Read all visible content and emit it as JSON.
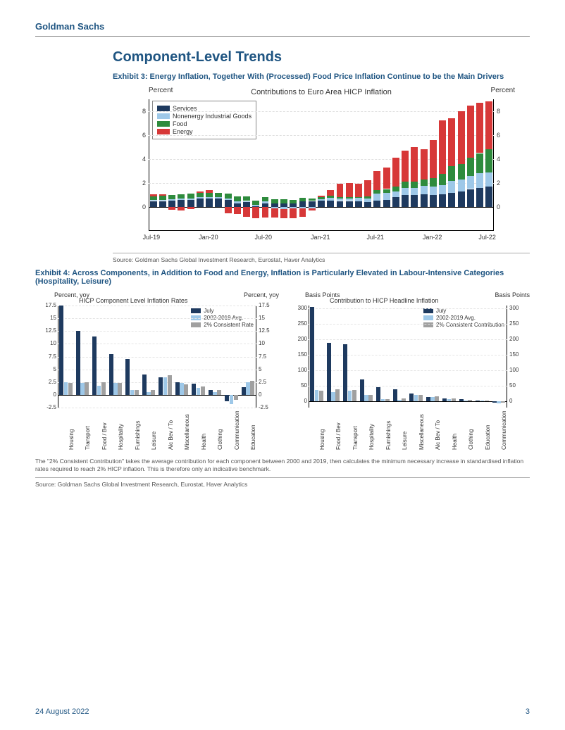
{
  "brand": "Goldman Sachs",
  "section_title": "Component-Level Trends",
  "exhibit3": {
    "title": "Exhibit 3: Energy Inflation, Together With (Processed) Food Price Inflation Continue to be the Main Drivers",
    "chart": {
      "type": "stacked_bar",
      "chart_title": "Contributions to Euro Area HICP Inflation",
      "y_label_left": "Percent",
      "y_label_right": "Percent",
      "ylim": [
        -2,
        9
      ],
      "ytick_step": 2,
      "legend": [
        {
          "label": "Services",
          "color": "#1e3a5f"
        },
        {
          "label": "Nonenergy Industrial Goods",
          "color": "#9ec8e8"
        },
        {
          "label": "Food",
          "color": "#2e8b3d"
        },
        {
          "label": "Energy",
          "color": "#d73838"
        }
      ],
      "x_labels": [
        "Jul-19",
        "Jan-20",
        "Jul-20",
        "Jan-21",
        "Jul-21",
        "Jan-22",
        "Jul-22"
      ],
      "bars": [
        {
          "services": 0.5,
          "goods": 0.1,
          "food": 0.3,
          "energy": 0.15
        },
        {
          "services": 0.5,
          "goods": 0.1,
          "food": 0.35,
          "energy": 0.1
        },
        {
          "services": 0.55,
          "goods": 0.1,
          "food": 0.35,
          "energy": -0.25
        },
        {
          "services": 0.6,
          "goods": 0.1,
          "food": 0.35,
          "energy": -0.3
        },
        {
          "services": 0.6,
          "goods": 0.1,
          "food": 0.4,
          "energy": -0.2
        },
        {
          "services": 0.7,
          "goods": 0.1,
          "food": 0.4,
          "energy": 0.1
        },
        {
          "services": 0.7,
          "goods": 0.1,
          "food": 0.4,
          "energy": 0.2
        },
        {
          "services": 0.7,
          "goods": 0.1,
          "food": 0.4,
          "energy": 0.0
        },
        {
          "services": 0.6,
          "goods": 0.1,
          "food": 0.4,
          "energy": -0.55
        },
        {
          "services": 0.3,
          "goods": 0.15,
          "food": 0.45,
          "energy": -0.6
        },
        {
          "services": 0.4,
          "goods": 0.1,
          "food": 0.4,
          "energy": -0.85
        },
        {
          "services": 0.05,
          "goods": 0.1,
          "food": 0.4,
          "energy": -0.95
        },
        {
          "services": 0.3,
          "goods": 0.15,
          "food": 0.4,
          "energy": -0.9
        },
        {
          "services": 0.3,
          "goods": -0.1,
          "food": 0.35,
          "energy": -0.8
        },
        {
          "services": 0.3,
          "goods": -0.15,
          "food": 0.35,
          "energy": -0.8
        },
        {
          "services": 0.3,
          "goods": -0.1,
          "food": 0.3,
          "energy": -0.85
        },
        {
          "services": 0.5,
          "goods": -0.1,
          "food": 0.25,
          "energy": -0.7
        },
        {
          "services": 0.5,
          "goods": -0.1,
          "food": 0.2,
          "energy": -0.2
        },
        {
          "services": 0.55,
          "goods": 0.1,
          "food": 0.2,
          "energy": 0.1
        },
        {
          "services": 0.55,
          "goods": 0.2,
          "food": 0.2,
          "energy": 0.45
        },
        {
          "services": 0.5,
          "goods": 0.2,
          "food": 0.15,
          "energy": 1.1
        },
        {
          "services": 0.5,
          "goods": 0.2,
          "food": 0.1,
          "energy": 1.2
        },
        {
          "services": 0.5,
          "goods": 0.25,
          "food": 0.1,
          "energy": 1.1
        },
        {
          "services": 0.4,
          "goods": 0.3,
          "food": 0.2,
          "energy": 1.35
        },
        {
          "services": 0.55,
          "goods": 0.55,
          "food": 0.3,
          "energy": 1.6
        },
        {
          "services": 0.6,
          "goods": 0.55,
          "food": 0.35,
          "energy": 1.8
        },
        {
          "services": 0.8,
          "goods": 0.5,
          "food": 0.4,
          "energy": 2.4
        },
        {
          "services": 1.0,
          "goods": 0.6,
          "food": 0.5,
          "energy": 2.6
        },
        {
          "services": 1.0,
          "goods": 0.6,
          "food": 0.5,
          "energy": 2.9
        },
        {
          "services": 1.05,
          "goods": 0.7,
          "food": 0.55,
          "energy": 2.5
        },
        {
          "services": 1.0,
          "goods": 0.7,
          "food": 0.7,
          "energy": 3.2
        },
        {
          "services": 1.05,
          "goods": 0.8,
          "food": 0.9,
          "energy": 4.5
        },
        {
          "services": 1.2,
          "goods": 1.0,
          "food": 1.2,
          "energy": 4.0
        },
        {
          "services": 1.3,
          "goods": 1.0,
          "food": 1.3,
          "energy": 4.4
        },
        {
          "services": 1.5,
          "goods": 1.1,
          "food": 1.5,
          "energy": 4.4
        },
        {
          "services": 1.6,
          "goods": 1.2,
          "food": 1.7,
          "energy": 4.2
        },
        {
          "services": 1.7,
          "goods": 1.2,
          "food": 1.95,
          "energy": 4.0
        }
      ]
    },
    "source": "Source: Goldman Sachs Global Investment Research, Eurostat, Haver Analytics"
  },
  "exhibit4": {
    "title": "Exhibit 4: Across Components, in Addition to Food and Energy, Inflation is Particularly Elevated in Labour-Intensive Categories (Hospitality, Leisure)",
    "left_chart": {
      "type": "grouped_bar",
      "y_label": "Percent, yoy",
      "title": "HICP Component Level Inflation Rates",
      "ylim": [
        -2.5,
        17.5
      ],
      "yticks": [
        -2.5,
        0.0,
        2.5,
        5.0,
        7.5,
        10.0,
        12.5,
        15.0,
        17.5
      ],
      "legend": [
        {
          "label": "July",
          "color": "#1e3a5f"
        },
        {
          "label": "2002-2019 Avg.",
          "color": "#9ec8e8"
        },
        {
          "label": "2% Consistent Rate",
          "color": "#a0a0a0"
        }
      ],
      "categories": [
        "Housing",
        "Transport",
        "Food / Bev",
        "Hospitality",
        "Furnishings",
        "Leisure",
        "Alc Bev / To",
        "Miscellaneous",
        "Health",
        "Clothing",
        "Communication",
        "Education"
      ],
      "series": {
        "july": [
          17.5,
          12.5,
          11.4,
          8.0,
          7.0,
          4.0,
          3.5,
          2.5,
          2.2,
          1.0,
          -1.2,
          1.5
        ],
        "avg": [
          2.5,
          2.3,
          1.8,
          2.3,
          1.0,
          0.5,
          3.4,
          2.3,
          1.4,
          0.5,
          -1.8,
          2.5
        ],
        "consistent": [
          2.3,
          2.5,
          2.5,
          2.3,
          1.0,
          1.0,
          3.8,
          2.0,
          1.7,
          1.0,
          -1.0,
          2.8
        ]
      }
    },
    "right_chart": {
      "type": "grouped_bar",
      "y_label": "Basis Points",
      "title": "Contribution to HICP Headline Inflation",
      "ylim": [
        -20,
        310
      ],
      "yticks": [
        0,
        50,
        100,
        150,
        200,
        250,
        300
      ],
      "legend": [
        {
          "label": "July",
          "color": "#1e3a5f"
        },
        {
          "label": "2002-2019 Avg.",
          "color": "#9ec8e8"
        },
        {
          "label": "2% Consistent Contribution",
          "color": "#a0a0a0"
        }
      ],
      "categories": [
        "Housing",
        "Food / Bev",
        "Transport",
        "Hospitality",
        "Furnishings",
        "Leisure",
        "Miscellaneous",
        "Alc Bev / To",
        "Health",
        "Clothing",
        "Education",
        "Communication"
      ],
      "series": {
        "july": [
          305,
          190,
          185,
          70,
          45,
          40,
          25,
          15,
          10,
          8,
          3,
          -5
        ],
        "avg": [
          38,
          30,
          35,
          22,
          8,
          5,
          22,
          14,
          7,
          3,
          3,
          -6
        ],
        "consistent": [
          35,
          40,
          38,
          22,
          8,
          10,
          20,
          16,
          9,
          6,
          3,
          -4
        ]
      }
    },
    "footnote": "The \"2% Consistent Contribution\" takes the average contribution for each component between 2000 and 2019, then calculates the minimum necessary increase in standardised inflation rates required to reach 2% HICP inflation. This is therefore only an indicative benchmark.",
    "source": "Source: Goldman Sachs Global Investment Research, Eurostat, Haver Analytics"
  },
  "footer": {
    "date": "24 August 2022",
    "page": "3"
  },
  "colors": {
    "brand_text": "#1f5582",
    "services": "#1e3a5f",
    "goods": "#9ec8e8",
    "food": "#2e8b3d",
    "energy": "#d73838",
    "grey": "#a0a0a0"
  }
}
